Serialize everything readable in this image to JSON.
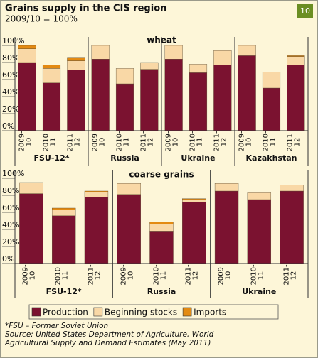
{
  "title": "Grains supply in the CIS region",
  "subtitle": "2009/10 = 100%",
  "badge": "10",
  "footnotes": [
    "*FSU – Former Soviet Union",
    "Source: United States Department of Agriculture, World",
    "Agricultural Supply and Demand Estimates (May 2011)"
  ],
  "chart_data": [
    {
      "type": "bar",
      "stacked": true,
      "title": "wheat",
      "groups": [
        "FSU-12*",
        "Russia",
        "Ukraine",
        "Kazakhstan"
      ],
      "categories": [
        "2009-10",
        "2010-11",
        "2011-12",
        "2009-10",
        "2010-11",
        "2011-12",
        "2009-10",
        "2010-11",
        "2011-12",
        "2009-10",
        "2010-11",
        "2011-12"
      ],
      "series": [
        {
          "name": "Production",
          "color": "#7b1230",
          "values": [
            80,
            56,
            71,
            84,
            55,
            72,
            84,
            68,
            77,
            88,
            50,
            77
          ]
        },
        {
          "name": "Beginning stocks",
          "color": "#f9d8a6",
          "values": [
            16,
            17,
            11,
            16,
            18,
            8,
            16,
            10,
            17,
            12,
            19,
            10
          ]
        },
        {
          "name": "Imports",
          "color": "#e38a12",
          "values": [
            4,
            4,
            4,
            0,
            0,
            0,
            0,
            0,
            0,
            0,
            0,
            1
          ]
        }
      ],
      "ylim": [
        0,
        100
      ],
      "yticks": [
        {
          "value": 0,
          "label": "0%"
        },
        {
          "value": 20,
          "label": "20%"
        },
        {
          "value": 40,
          "label": "40%"
        },
        {
          "value": 60,
          "label": "60%"
        },
        {
          "value": 80,
          "label": "80%"
        },
        {
          "value": 100,
          "label": "100%"
        }
      ]
    },
    {
      "type": "bar",
      "stacked": true,
      "title": "coarse grains",
      "groups": [
        "FSU-12*",
        "Russia",
        "Ukraine"
      ],
      "categories": [
        "2009-10",
        "2010-11",
        "2011-12",
        "2009-10",
        "2010-11",
        "2011-12",
        "2009-10",
        "2010-11",
        "2011-12"
      ],
      "series": [
        {
          "name": "Production",
          "color": "#7b1230",
          "values": [
            82,
            56,
            78,
            81,
            38,
            72,
            85,
            75,
            85
          ]
        },
        {
          "name": "Beginning stocks",
          "color": "#f9d8a6",
          "values": [
            13,
            7,
            6,
            13,
            8,
            3,
            9,
            8,
            7
          ]
        },
        {
          "name": "Imports",
          "color": "#e38a12",
          "values": [
            0,
            2,
            1,
            0,
            3,
            1,
            0,
            0,
            0
          ]
        }
      ],
      "ylim": [
        0,
        100
      ],
      "yticks": [
        {
          "value": 0,
          "label": "0%"
        },
        {
          "value": 20,
          "label": "20%"
        },
        {
          "value": 40,
          "label": "40%"
        },
        {
          "value": 60,
          "label": "60%"
        },
        {
          "value": 80,
          "label": "80%"
        },
        {
          "value": 100,
          "label": "100%"
        }
      ]
    }
  ]
}
